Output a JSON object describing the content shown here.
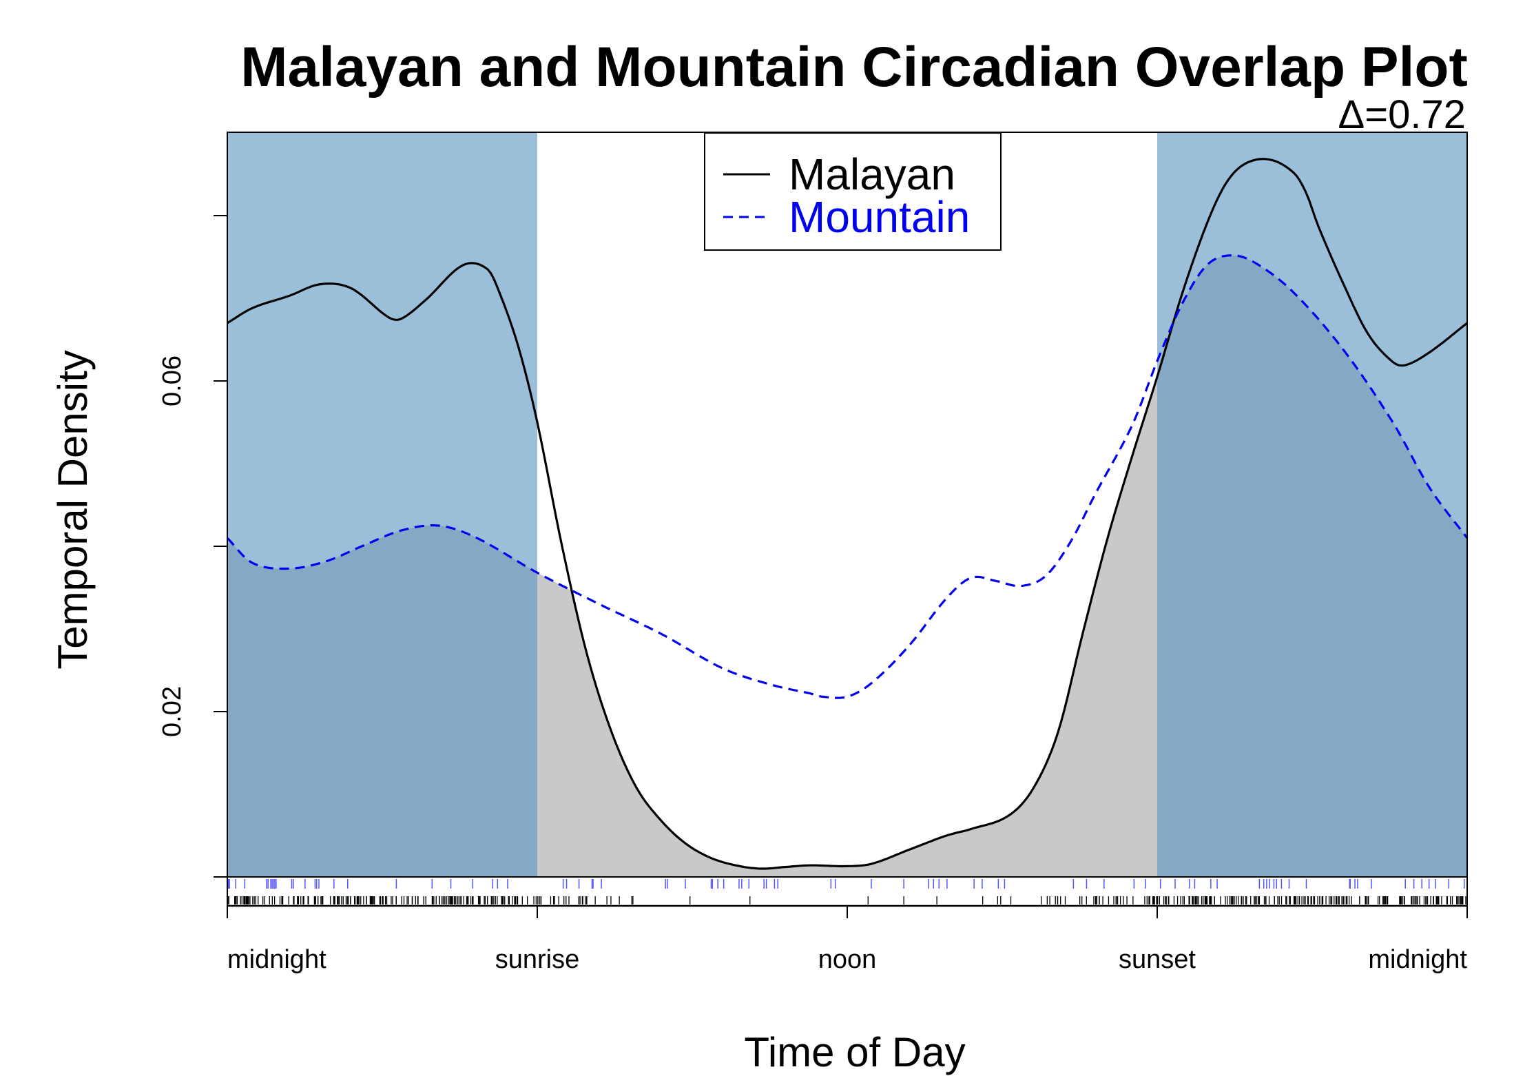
{
  "chart_data": {
    "type": "line",
    "title": "Malayan and Mountain Circadian Overlap Plot",
    "subtitle": "Δ=0.72",
    "xlabel": "Time of Day",
    "ylabel": "Temporal Density",
    "xlim": [
      0,
      1
    ],
    "ylim": [
      0,
      0.086
    ],
    "x_ticks": [
      {
        "x": 0.0,
        "label": "midnight"
      },
      {
        "x": 0.25,
        "label": "sunrise"
      },
      {
        "x": 0.5,
        "label": "noon"
      },
      {
        "x": 0.75,
        "label": "sunset"
      },
      {
        "x": 1.0,
        "label": "midnight"
      }
    ],
    "y_ticks": [
      {
        "y": 0.02,
        "label": "0.02"
      },
      {
        "y": 0.06,
        "label": "0.06"
      }
    ],
    "night_shading": [
      [
        0,
        0.25
      ],
      [
        0.75,
        1.0
      ]
    ],
    "colors": {
      "night": "#9bbfd9",
      "overlap": "#c9c9c9",
      "overlap_night": "#85a9c4",
      "malayan": "#000000",
      "mountain": "#0000ee"
    },
    "legend": {
      "position": "top-center"
    },
    "series": [
      {
        "name": "Malayan",
        "style": "solid",
        "color": "#000000",
        "x": [
          0.0,
          0.02,
          0.05,
          0.075,
          0.1,
          0.13,
          0.14,
          0.16,
          0.19,
          0.21,
          0.22,
          0.235,
          0.25,
          0.27,
          0.29,
          0.31,
          0.33,
          0.35,
          0.37,
          0.39,
          0.41,
          0.43,
          0.45,
          0.47,
          0.5,
          0.52,
          0.55,
          0.58,
          0.6,
          0.63,
          0.65,
          0.67,
          0.69,
          0.71,
          0.73,
          0.75,
          0.77,
          0.79,
          0.805,
          0.82,
          0.84,
          0.86,
          0.87,
          0.88,
          0.9,
          0.92,
          0.94,
          0.95,
          0.97,
          1.0
        ],
        "y": [
          0.067,
          0.0688,
          0.0703,
          0.0717,
          0.0712,
          0.0677,
          0.0675,
          0.0698,
          0.074,
          0.0735,
          0.0705,
          0.064,
          0.055,
          0.04,
          0.027,
          0.0175,
          0.0108,
          0.0068,
          0.004,
          0.0023,
          0.0014,
          0.001,
          0.0012,
          0.0014,
          0.0013,
          0.0016,
          0.0033,
          0.005,
          0.0058,
          0.0074,
          0.0107,
          0.0175,
          0.0295,
          0.041,
          0.051,
          0.0605,
          0.0705,
          0.079,
          0.0838,
          0.0862,
          0.0868,
          0.0852,
          0.0828,
          0.0787,
          0.0718,
          0.0657,
          0.0623,
          0.0619,
          0.0635,
          0.067
        ]
      },
      {
        "name": "Mountain",
        "style": "dashed",
        "color": "#0000ee",
        "x": [
          0.0,
          0.02,
          0.05,
          0.08,
          0.11,
          0.14,
          0.17,
          0.2,
          0.25,
          0.3,
          0.35,
          0.4,
          0.44,
          0.47,
          0.48,
          0.5,
          0.52,
          0.55,
          0.58,
          0.6,
          0.62,
          0.64,
          0.66,
          0.68,
          0.7,
          0.73,
          0.75,
          0.77,
          0.79,
          0.81,
          0.83,
          0.86,
          0.9,
          0.94,
          0.97,
          1.0
        ],
        "y": [
          0.041,
          0.038,
          0.0373,
          0.0382,
          0.0401,
          0.0419,
          0.0425,
          0.0411,
          0.0368,
          0.033,
          0.0294,
          0.0252,
          0.0232,
          0.0222,
          0.0218,
          0.0218,
          0.0235,
          0.028,
          0.0337,
          0.0362,
          0.0358,
          0.0352,
          0.0364,
          0.0405,
          0.0463,
          0.0547,
          0.0624,
          0.0693,
          0.074,
          0.0752,
          0.0742,
          0.0707,
          0.0638,
          0.055,
          0.047,
          0.041
        ]
      }
    ]
  }
}
